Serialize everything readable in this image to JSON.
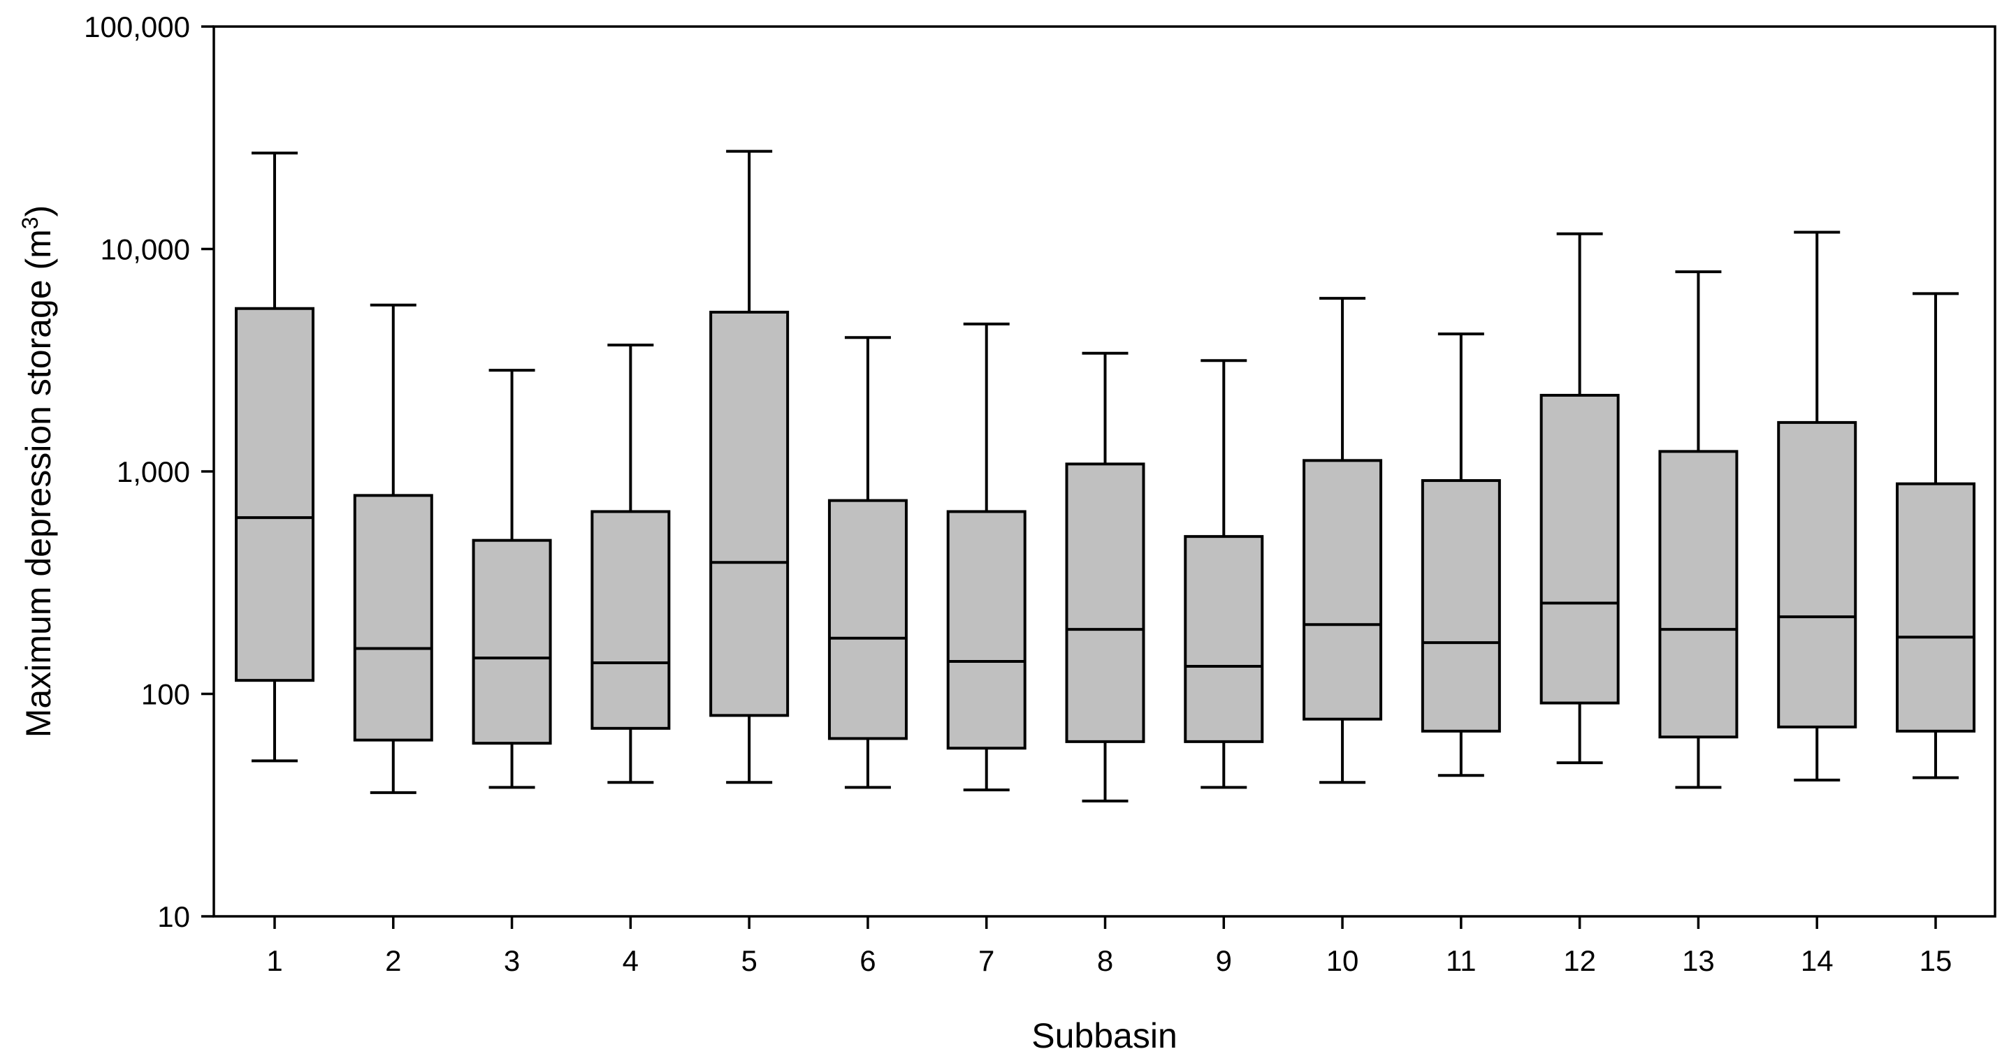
{
  "chart_data": {
    "type": "boxplot",
    "title": "",
    "xlabel": "Subbasin",
    "ylabel": "Maximum depression storage (m",
    "ylabel_superscript": "3",
    "ylabel_suffix": ")",
    "yscale": "log",
    "ylim": [
      10,
      100000
    ],
    "yticks": [
      10,
      100,
      1000,
      10000,
      100000
    ],
    "ytick_labels": [
      "10",
      "100",
      "1,000",
      "10,000",
      "100,000"
    ],
    "categories": [
      "1",
      "2",
      "3",
      "4",
      "5",
      "6",
      "7",
      "8",
      "9",
      "10",
      "11",
      "12",
      "13",
      "14",
      "15"
    ],
    "boxes": [
      {
        "whislo": 50,
        "q1": 115,
        "med": 620,
        "q3": 5400,
        "whishi": 27000
      },
      {
        "whislo": 36,
        "q1": 62,
        "med": 160,
        "q3": 780,
        "whishi": 5600
      },
      {
        "whislo": 38,
        "q1": 60,
        "med": 145,
        "q3": 490,
        "whishi": 2850
      },
      {
        "whislo": 40,
        "q1": 70,
        "med": 138,
        "q3": 660,
        "whishi": 3700
      },
      {
        "whislo": 40,
        "q1": 80,
        "med": 390,
        "q3": 5200,
        "whishi": 27500
      },
      {
        "whislo": 38,
        "q1": 63,
        "med": 178,
        "q3": 740,
        "whishi": 4000
      },
      {
        "whislo": 37,
        "q1": 57,
        "med": 140,
        "q3": 660,
        "whishi": 4600
      },
      {
        "whislo": 33,
        "q1": 61,
        "med": 195,
        "q3": 1080,
        "whishi": 3400
      },
      {
        "whislo": 38,
        "q1": 61,
        "med": 133,
        "q3": 510,
        "whishi": 3150
      },
      {
        "whislo": 40,
        "q1": 77,
        "med": 205,
        "q3": 1120,
        "whishi": 6000
      },
      {
        "whislo": 43,
        "q1": 68,
        "med": 170,
        "q3": 910,
        "whishi": 4150
      },
      {
        "whislo": 49,
        "q1": 91,
        "med": 256,
        "q3": 2200,
        "whishi": 11700
      },
      {
        "whislo": 38,
        "q1": 64,
        "med": 195,
        "q3": 1230,
        "whishi": 7900
      },
      {
        "whislo": 41,
        "q1": 71,
        "med": 222,
        "q3": 1660,
        "whishi": 11900
      },
      {
        "whislo": 42,
        "q1": 68,
        "med": 180,
        "q3": 880,
        "whishi": 6300
      }
    ],
    "colors": {
      "box_fill": "#c0c0c0",
      "line": "#000000",
      "background": "#ffffff"
    },
    "grid": false,
    "legend": "none"
  }
}
